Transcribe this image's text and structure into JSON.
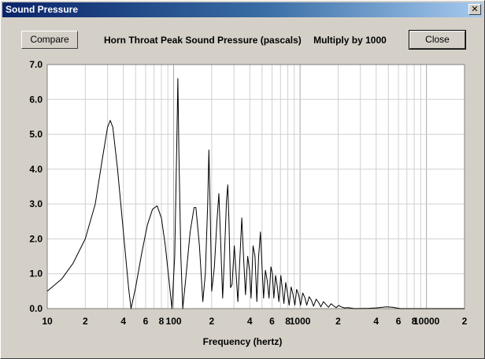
{
  "window": {
    "title": "Sound Pressure",
    "close_glyph": "✕"
  },
  "buttons": {
    "compare": "Compare",
    "close": "Close"
  },
  "heading": {
    "title": "Horn Throat Peak Sound Pressure (pascals)",
    "multiplier": "Multiply by 1000"
  },
  "chart_data": {
    "type": "line",
    "title": "Horn Throat Peak Sound Pressure (pascals)",
    "subtitle": "Multiply by 1000",
    "xlabel": "Frequency (hertz)",
    "ylabel": "",
    "x_scale": "log",
    "xlim": [
      10,
      20000
    ],
    "ylim": [
      0,
      7
    ],
    "grid": true,
    "y_ticks": [
      "0.0",
      "1.0",
      "2.0",
      "3.0",
      "4.0",
      "5.0",
      "6.0",
      "7.0"
    ],
    "x_ticks": [
      {
        "value": 10,
        "label": "10"
      },
      {
        "value": 20,
        "label": "2"
      },
      {
        "value": 40,
        "label": "4"
      },
      {
        "value": 60,
        "label": "6"
      },
      {
        "value": 80,
        "label": "8"
      },
      {
        "value": 100,
        "label": "100"
      },
      {
        "value": 200,
        "label": "2"
      },
      {
        "value": 400,
        "label": "4"
      },
      {
        "value": 600,
        "label": "6"
      },
      {
        "value": 800,
        "label": "8"
      },
      {
        "value": 1000,
        "label": "1000"
      },
      {
        "value": 2000,
        "label": "2"
      },
      {
        "value": 4000,
        "label": "4"
      },
      {
        "value": 6000,
        "label": "6"
      },
      {
        "value": 8000,
        "label": "8"
      },
      {
        "value": 10000,
        "label": "10000"
      },
      {
        "value": 20000,
        "label": "2"
      }
    ],
    "series": [
      {
        "points": [
          [
            10,
            0.5
          ],
          [
            13,
            0.85
          ],
          [
            16,
            1.3
          ],
          [
            20,
            2.0
          ],
          [
            24,
            3.0
          ],
          [
            27,
            4.2
          ],
          [
            30,
            5.2
          ],
          [
            31.5,
            5.4
          ],
          [
            33,
            5.2
          ],
          [
            36,
            4.0
          ],
          [
            40,
            2.2
          ],
          [
            44,
            0.6
          ],
          [
            46,
            0.0
          ],
          [
            50,
            0.6
          ],
          [
            56,
            1.6
          ],
          [
            62,
            2.4
          ],
          [
            68,
            2.85
          ],
          [
            74,
            2.95
          ],
          [
            80,
            2.6
          ],
          [
            86,
            1.8
          ],
          [
            92,
            0.8
          ],
          [
            97,
            0.0
          ],
          [
            102,
            1.5
          ],
          [
            106,
            4.8
          ],
          [
            108,
            6.6
          ],
          [
            110,
            4.5
          ],
          [
            114,
            1.5
          ],
          [
            118,
            0.0
          ],
          [
            125,
            0.9
          ],
          [
            135,
            2.2
          ],
          [
            145,
            2.9
          ],
          [
            150,
            2.9
          ],
          [
            160,
            1.8
          ],
          [
            170,
            0.2
          ],
          [
            178,
            1.0
          ],
          [
            186,
            3.0
          ],
          [
            190,
            4.55
          ],
          [
            194,
            3.0
          ],
          [
            200,
            0.5
          ],
          [
            210,
            1.2
          ],
          [
            220,
            2.5
          ],
          [
            228,
            3.3
          ],
          [
            234,
            2.2
          ],
          [
            244,
            0.3
          ],
          [
            252,
            1.5
          ],
          [
            262,
            3.1
          ],
          [
            268,
            3.55
          ],
          [
            274,
            2.5
          ],
          [
            282,
            0.6
          ],
          [
            290,
            0.7
          ],
          [
            302,
            1.8
          ],
          [
            312,
            1.0
          ],
          [
            322,
            0.2
          ],
          [
            334,
            1.4
          ],
          [
            346,
            2.6
          ],
          [
            358,
            1.4
          ],
          [
            370,
            0.4
          ],
          [
            385,
            1.5
          ],
          [
            398,
            1.1
          ],
          [
            410,
            0.3
          ],
          [
            425,
            1.8
          ],
          [
            440,
            1.5
          ],
          [
            455,
            0.2
          ],
          [
            470,
            1.5
          ],
          [
            486,
            2.2
          ],
          [
            500,
            1.2
          ],
          [
            515,
            0.3
          ],
          [
            532,
            1.1
          ],
          [
            550,
            0.8
          ],
          [
            568,
            0.3
          ],
          [
            588,
            1.2
          ],
          [
            604,
            1.0
          ],
          [
            620,
            0.3
          ],
          [
            640,
            0.95
          ],
          [
            660,
            0.65
          ],
          [
            680,
            0.2
          ],
          [
            705,
            0.95
          ],
          [
            725,
            0.55
          ],
          [
            745,
            0.15
          ],
          [
            770,
            0.75
          ],
          [
            795,
            0.45
          ],
          [
            820,
            0.1
          ],
          [
            850,
            0.62
          ],
          [
            880,
            0.4
          ],
          [
            910,
            0.1
          ],
          [
            940,
            0.55
          ],
          [
            975,
            0.4
          ],
          [
            1010,
            0.1
          ],
          [
            1050,
            0.45
          ],
          [
            1090,
            0.32
          ],
          [
            1130,
            0.1
          ],
          [
            1180,
            0.34
          ],
          [
            1230,
            0.24
          ],
          [
            1280,
            0.07
          ],
          [
            1340,
            0.27
          ],
          [
            1400,
            0.18
          ],
          [
            1460,
            0.05
          ],
          [
            1530,
            0.2
          ],
          [
            1600,
            0.12
          ],
          [
            1680,
            0.04
          ],
          [
            1760,
            0.14
          ],
          [
            1840,
            0.08
          ],
          [
            1930,
            0.03
          ],
          [
            2020,
            0.09
          ],
          [
            2120,
            0.05
          ],
          [
            2250,
            0.02
          ],
          [
            2400,
            0.03
          ],
          [
            2700,
            0.0
          ],
          [
            3500,
            0.01
          ],
          [
            4000,
            0.02
          ],
          [
            4800,
            0.05
          ],
          [
            5400,
            0.04
          ],
          [
            6200,
            0.0
          ],
          [
            20000,
            0.0
          ]
        ]
      }
    ]
  }
}
